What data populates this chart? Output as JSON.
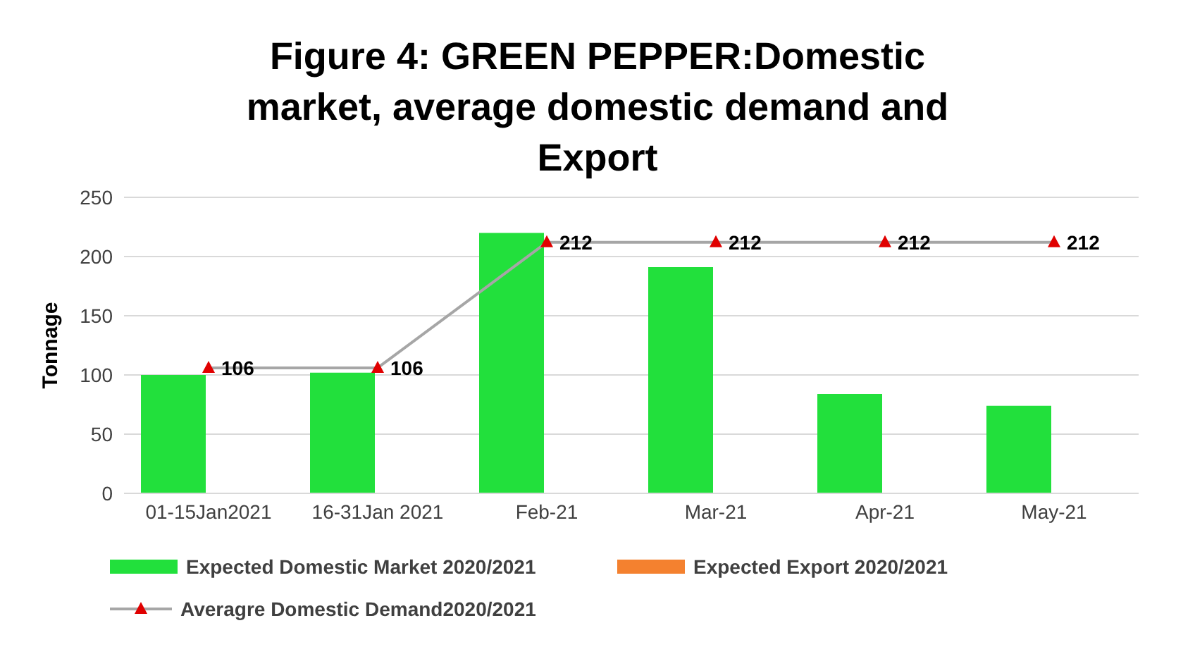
{
  "chart_data": {
    "type": "bar",
    "title": "Figure 4: GREEN PEPPER:Domestic market, average domestic demand and Export",
    "ylabel": "Tonnage",
    "categories": [
      "01-15Jan2021",
      "16-31Jan 2021",
      "Feb-21",
      "Mar-21",
      "Apr-21",
      "May-21"
    ],
    "series": [
      {
        "name": "Expected Domestic Market 2020/2021",
        "color": "#22e03c",
        "values": [
          100,
          102,
          220,
          191,
          84,
          74
        ]
      },
      {
        "name": "Expected  Export 2020/2021",
        "color": "#f4812f",
        "values": [
          null,
          null,
          null,
          null,
          null,
          null
        ]
      },
      {
        "type": "line",
        "name": "Averagre Domestic Demand2020/2021",
        "color": "#a6a6a6",
        "marker": "triangle",
        "values": [
          106,
          106,
          212,
          212,
          212,
          212
        ],
        "value_labels": [
          "106",
          "106",
          "212",
          "212",
          "212",
          "212"
        ]
      }
    ],
    "ylim": [
      0,
      250
    ],
    "yticks": [
      0,
      50,
      100,
      150,
      200,
      250
    ],
    "grid": "y",
    "legend": "bottom"
  }
}
